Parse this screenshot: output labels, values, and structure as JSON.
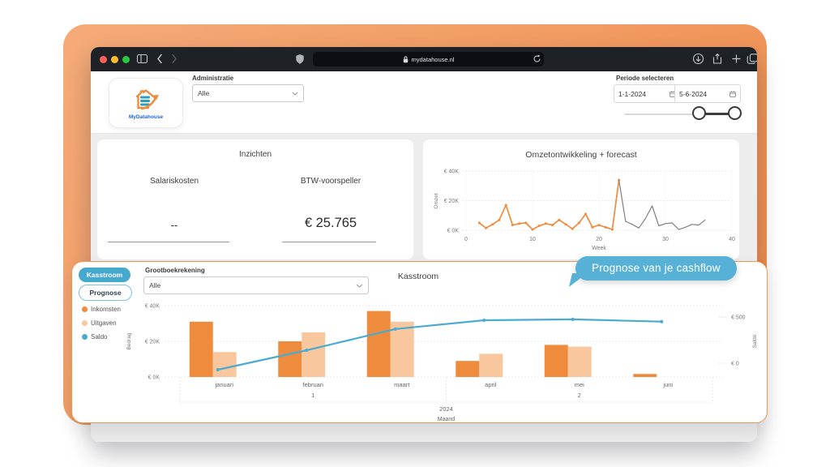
{
  "colors": {
    "brand_orange": "#ee8c4b",
    "accent_blue": "#45a9ce",
    "tooltip_blue": "#57b1d6",
    "income_orange": "#ef8b3d",
    "expense_light_orange": "#f8c79d",
    "saldo_blue": "#4aaacf",
    "forecast_gray": "#808080"
  },
  "browser": {
    "url": "mydatahouse.nl"
  },
  "header": {
    "administratie_label": "Administratie",
    "administratie_value": "Alle",
    "logo_text": "MyDatahouse",
    "periode_label": "Periode selecteren",
    "date_from": "1-1-2024",
    "date_to": "5-6-2024"
  },
  "inzichten": {
    "title": "Inzichten",
    "items": [
      {
        "label": "Salariskosten",
        "value": "--"
      },
      {
        "label": "BTW-voorspeller",
        "value": "€ 25.765"
      }
    ]
  },
  "kasstroom_card": {
    "tab_kasstroom": "Kasstroom",
    "tab_prognose": "Prognose",
    "grootboek_label": "Grootboekrekening",
    "grootboek_value": "Alle",
    "title": "Kasstroom",
    "tooltip": "Prognose van je cashflow",
    "legend": [
      {
        "label": "Inkomsten",
        "color": "#ef8b3d"
      },
      {
        "label": "Uitgaven",
        "color": "#f8c79d"
      },
      {
        "label": "Saldo",
        "color": "#4aaacf"
      }
    ]
  },
  "chart_data": [
    {
      "id": "omzet",
      "type": "line",
      "title": "Omzetontwikkeling + forecast",
      "xlabel": "Week",
      "ylabel": "Omzet",
      "xlim": [
        0,
        40
      ],
      "ylim": [
        0,
        40000
      ],
      "xticks": [
        0,
        10,
        20,
        30,
        40
      ],
      "yticks": [
        {
          "value": 0,
          "label": "€ 0K"
        },
        {
          "value": 20000,
          "label": "€ 20K"
        },
        {
          "value": 40000,
          "label": "€ 40K"
        }
      ],
      "series": [
        {
          "name": "Omzet",
          "color": "#ef8b3d",
          "width": 1.7,
          "markers": true,
          "x": [
            2,
            3,
            4,
            5,
            6,
            7,
            8,
            9,
            10,
            11,
            12,
            13,
            14,
            15,
            16,
            17,
            18,
            19,
            20,
            21,
            22,
            23
          ],
          "y": [
            5000,
            1500,
            4000,
            7000,
            17000,
            3500,
            4500,
            5000,
            500,
            3000,
            4500,
            3500,
            7000,
            4000,
            1000,
            5000,
            11000,
            2000,
            3500,
            2000,
            500,
            34000
          ]
        },
        {
          "name": "forecast",
          "color": "#808080",
          "width": 1.2,
          "markers": false,
          "x": [
            23,
            24,
            25,
            26,
            27,
            28,
            29,
            30,
            31,
            32,
            33,
            34,
            35,
            36
          ],
          "y": [
            34000,
            6000,
            4000,
            1500,
            8000,
            16500,
            3000,
            4500,
            5000,
            500,
            2000,
            4000,
            3500,
            7000
          ]
        }
      ]
    },
    {
      "id": "kasstroom",
      "type": "bar+line",
      "categories": [
        "januari",
        "februari",
        "maart",
        "april",
        "mei",
        "juni"
      ],
      "quarter_labels": [
        {
          "label": "1",
          "month_index": 1
        },
        {
          "label": "2",
          "month_index": 4
        }
      ],
      "year": "2024",
      "xlabel": "Maand",
      "ylabel_left": "Bedrag",
      "ylabel_right": "Saldo",
      "ylim_left": [
        0,
        40000
      ],
      "ylim_right": [
        -150,
        620
      ],
      "yticks_left": [
        {
          "value": 0,
          "label": "€ 0K"
        },
        {
          "value": 20000,
          "label": "€ 20K"
        },
        {
          "value": 40000,
          "label": "€ 40K"
        }
      ],
      "yticks_right": [
        {
          "value": 0,
          "label": "€ 0"
        },
        {
          "value": 500,
          "label": "€ 500"
        }
      ],
      "series": [
        {
          "name": "Inkomsten",
          "type": "bar",
          "axis": "left",
          "color": "#ef8b3d",
          "values": [
            31000,
            20000,
            37000,
            9000,
            18000,
            1700
          ]
        },
        {
          "name": "Uitgaven",
          "type": "bar",
          "axis": "left",
          "color": "#f8c79d",
          "values": [
            14000,
            25000,
            31000,
            13000,
            17000,
            0
          ]
        },
        {
          "name": "Saldo",
          "type": "line",
          "axis": "right",
          "color": "#4aaacf",
          "values": [
            -70,
            140,
            370,
            465,
            475,
            450
          ]
        }
      ]
    }
  ]
}
